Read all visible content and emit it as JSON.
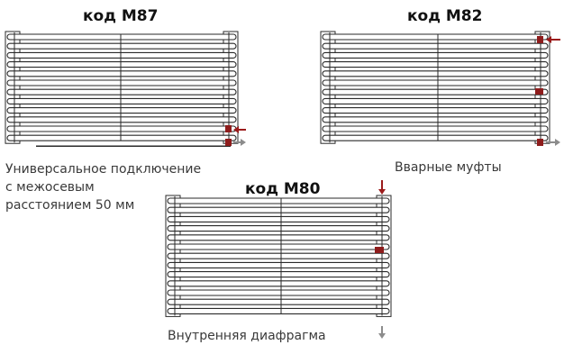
{
  "diagrams": [
    {
      "code": "код М87",
      "caption_lines": [
        "Универсальное подключение",
        "с межосевым",
        "расстоянием 50 мм"
      ]
    },
    {
      "code": "код М82",
      "caption_lines": [
        "Вварные муфты"
      ]
    },
    {
      "code": "код М80",
      "caption_lines": [
        "Внутренняя  диафрагма"
      ]
    }
  ],
  "colors": {
    "outline": "#2a2a2a",
    "supply_arrow": "#9b1b1b",
    "return_arrow": "#8c8c8c",
    "connector": "#8e1c1c"
  }
}
